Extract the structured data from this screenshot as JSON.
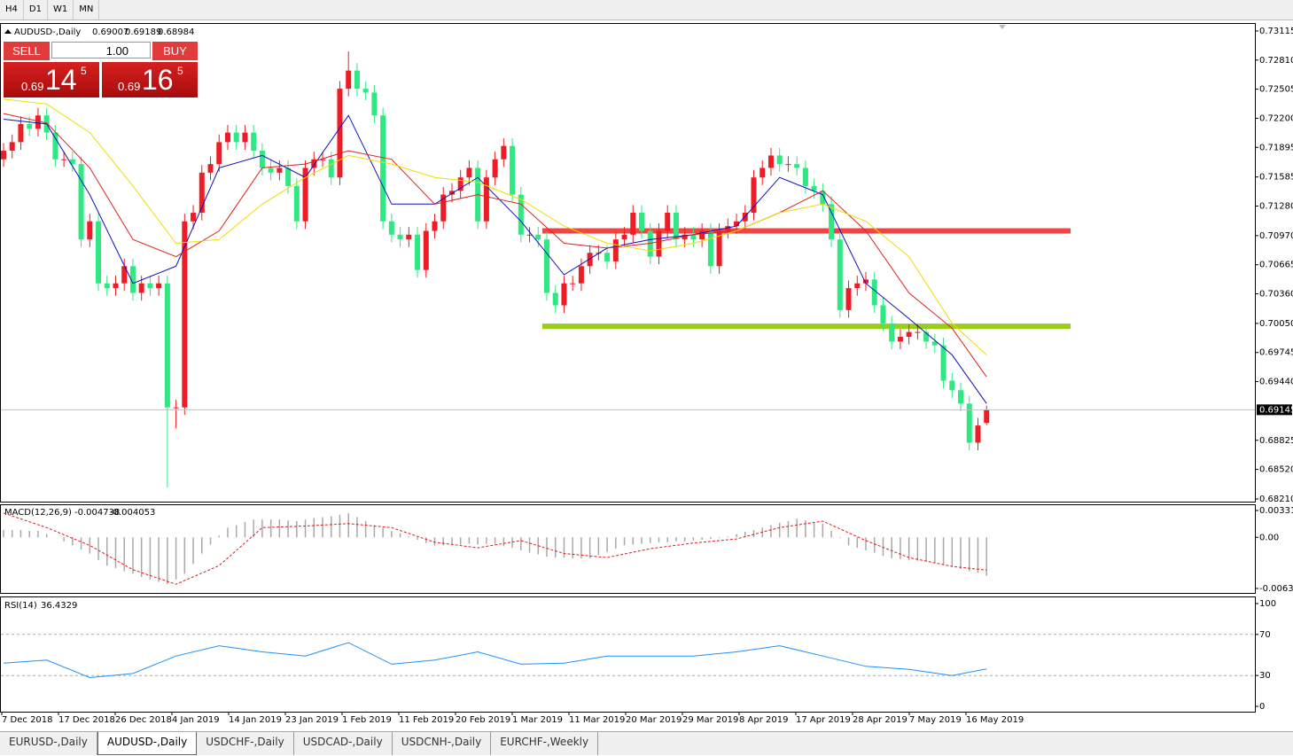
{
  "toolbar": {
    "timeframes": [
      "H4",
      "D1",
      "W1",
      "MN"
    ]
  },
  "trade_panel": {
    "sell": "SELL",
    "buy": "BUY",
    "lots": "1.00",
    "sell_price": {
      "prefix": "0.69",
      "big": "14",
      "small": "5"
    },
    "buy_price": {
      "prefix": "0.69",
      "big": "16",
      "small": "5"
    }
  },
  "tabs": [
    "EURUSD-,Daily",
    "AUDUSD-,Daily",
    "USDCHF-,Daily",
    "USDCAD-,Daily",
    "USDCNH-,Daily",
    "EURCHF-,Weekly"
  ],
  "active_tab": 1,
  "chart_data": [
    {
      "type": "candlestick",
      "title": "AUDUSD-,Daily",
      "up_color": "#ee1c25",
      "down_color": "#2ee882",
      "ohlc": [
        [
          0.7177,
          0.7194,
          0.7169,
          0.7186
        ],
        [
          0.7186,
          0.7203,
          0.7178,
          0.7195
        ],
        [
          0.7195,
          0.7222,
          0.7187,
          0.7214
        ],
        [
          0.7214,
          0.7222,
          0.7201,
          0.7209
        ],
        [
          0.7209,
          0.7231,
          0.7201,
          0.7223
        ],
        [
          0.7223,
          0.7231,
          0.7197,
          0.7205
        ],
        [
          0.7205,
          0.7213,
          0.7169,
          0.7177
        ],
        [
          0.7177,
          0.7185,
          0.7169,
          0.7177
        ],
        [
          0.7177,
          0.7185,
          0.7164,
          0.7172
        ],
        [
          0.7172,
          0.718,
          0.7085,
          0.7093
        ],
        [
          0.7093,
          0.712,
          0.7085,
          0.7112
        ],
        [
          0.7112,
          0.712,
          0.7039,
          0.7047
        ],
        [
          0.7047,
          0.7055,
          0.7034,
          0.7042
        ],
        [
          0.7042,
          0.7055,
          0.7034,
          0.7047
        ],
        [
          0.7047,
          0.7073,
          0.7039,
          0.7065
        ],
        [
          0.7065,
          0.7073,
          0.7029,
          0.7037
        ],
        [
          0.7037,
          0.7055,
          0.7029,
          0.7047
        ],
        [
          0.7047,
          0.7055,
          0.7034,
          0.7042
        ],
        [
          0.7042,
          0.7055,
          0.7034,
          0.7047
        ],
        [
          0.7047,
          0.7055,
          0.6833,
          0.6917
        ],
        [
          0.6917,
          0.6925,
          0.6895,
          0.6917
        ],
        [
          0.6917,
          0.712,
          0.6909,
          0.7112
        ],
        [
          0.7112,
          0.7129,
          0.7104,
          0.7121
        ],
        [
          0.7121,
          0.7171,
          0.7113,
          0.7163
        ],
        [
          0.7163,
          0.718,
          0.7155,
          0.7172
        ],
        [
          0.7172,
          0.7203,
          0.7164,
          0.7195
        ],
        [
          0.7195,
          0.7213,
          0.7187,
          0.7205
        ],
        [
          0.7205,
          0.7213,
          0.7187,
          0.7195
        ],
        [
          0.7195,
          0.7213,
          0.7187,
          0.7205
        ],
        [
          0.7205,
          0.7213,
          0.7178,
          0.7186
        ],
        [
          0.7186,
          0.7194,
          0.716,
          0.7168
        ],
        [
          0.7168,
          0.7176,
          0.7155,
          0.7163
        ],
        [
          0.7163,
          0.7176,
          0.7155,
          0.7168
        ],
        [
          0.7168,
          0.7176,
          0.7141,
          0.7149
        ],
        [
          0.7149,
          0.7157,
          0.7104,
          0.7112
        ],
        [
          0.7112,
          0.7176,
          0.7104,
          0.7168
        ],
        [
          0.7168,
          0.7185,
          0.716,
          0.7177
        ],
        [
          0.7177,
          0.7185,
          0.7169,
          0.7177
        ],
        [
          0.7177,
          0.7185,
          0.715,
          0.7158
        ],
        [
          0.7158,
          0.7259,
          0.715,
          0.7251
        ],
        [
          0.7251,
          0.729,
          0.7243,
          0.727
        ],
        [
          0.727,
          0.7278,
          0.7243,
          0.7251
        ],
        [
          0.7251,
          0.7259,
          0.7239,
          0.7247
        ],
        [
          0.7247,
          0.7255,
          0.7215,
          0.7223
        ],
        [
          0.7223,
          0.7231,
          0.7104,
          0.7112
        ],
        [
          0.7112,
          0.712,
          0.709,
          0.7098
        ],
        [
          0.7098,
          0.7106,
          0.7085,
          0.7093
        ],
        [
          0.7093,
          0.7106,
          0.7085,
          0.7098
        ],
        [
          0.7098,
          0.7106,
          0.7053,
          0.7061
        ],
        [
          0.7061,
          0.711,
          0.7053,
          0.7102
        ],
        [
          0.7102,
          0.712,
          0.7094,
          0.7112
        ],
        [
          0.7112,
          0.7148,
          0.7104,
          0.714
        ],
        [
          0.714,
          0.7152,
          0.7132,
          0.7144
        ],
        [
          0.7144,
          0.7166,
          0.7136,
          0.7158
        ],
        [
          0.7158,
          0.7176,
          0.715,
          0.7168
        ],
        [
          0.7168,
          0.7176,
          0.7104,
          0.7112
        ],
        [
          0.7112,
          0.7166,
          0.7104,
          0.7158
        ],
        [
          0.7158,
          0.7185,
          0.715,
          0.7177
        ],
        [
          0.7177,
          0.7199,
          0.7169,
          0.7191
        ],
        [
          0.7191,
          0.7199,
          0.7132,
          0.714
        ],
        [
          0.714,
          0.7148,
          0.709,
          0.7098
        ],
        [
          0.7098,
          0.7106,
          0.709,
          0.7098
        ],
        [
          0.7098,
          0.7106,
          0.7085,
          0.7093
        ],
        [
          0.7093,
          0.7101,
          0.7029,
          0.7037
        ],
        [
          0.7037,
          0.7045,
          0.7016,
          0.7024
        ],
        [
          0.7024,
          0.7055,
          0.7016,
          0.7047
        ],
        [
          0.7047,
          0.7055,
          0.7039,
          0.7047
        ],
        [
          0.7047,
          0.7073,
          0.7039,
          0.7065
        ],
        [
          0.7065,
          0.7087,
          0.7057,
          0.7079
        ],
        [
          0.7079,
          0.7087,
          0.7071,
          0.7079
        ],
        [
          0.7079,
          0.7087,
          0.7062,
          0.707
        ],
        [
          0.707,
          0.7101,
          0.7062,
          0.7093
        ],
        [
          0.7093,
          0.7106,
          0.7085,
          0.7098
        ],
        [
          0.7098,
          0.7129,
          0.709,
          0.7121
        ],
        [
          0.7121,
          0.7129,
          0.7094,
          0.7102
        ],
        [
          0.7102,
          0.711,
          0.7067,
          0.7075
        ],
        [
          0.7075,
          0.711,
          0.7067,
          0.7102
        ],
        [
          0.7102,
          0.7129,
          0.7094,
          0.7121
        ],
        [
          0.7121,
          0.7129,
          0.7085,
          0.7093
        ],
        [
          0.7093,
          0.7106,
          0.7085,
          0.7098
        ],
        [
          0.7098,
          0.7106,
          0.7085,
          0.7093
        ],
        [
          0.7093,
          0.711,
          0.7085,
          0.7102
        ],
        [
          0.7102,
          0.711,
          0.7057,
          0.7065
        ],
        [
          0.7065,
          0.711,
          0.7057,
          0.7102
        ],
        [
          0.7102,
          0.7115,
          0.7094,
          0.7107
        ],
        [
          0.7107,
          0.712,
          0.7099,
          0.7112
        ],
        [
          0.7112,
          0.7129,
          0.7104,
          0.7121
        ],
        [
          0.7121,
          0.7166,
          0.7113,
          0.7158
        ],
        [
          0.7158,
          0.7176,
          0.715,
          0.7168
        ],
        [
          0.7168,
          0.7189,
          0.716,
          0.7181
        ],
        [
          0.7181,
          0.7189,
          0.7164,
          0.7172
        ],
        [
          0.7172,
          0.718,
          0.7164,
          0.7172
        ],
        [
          0.7172,
          0.718,
          0.716,
          0.7168
        ],
        [
          0.7168,
          0.7176,
          0.7141,
          0.7149
        ],
        [
          0.7149,
          0.7157,
          0.7136,
          0.7144
        ],
        [
          0.7144,
          0.7152,
          0.7122,
          0.713
        ],
        [
          0.713,
          0.7138,
          0.7085,
          0.7093
        ],
        [
          0.7093,
          0.7101,
          0.7011,
          0.7019
        ],
        [
          0.7019,
          0.705,
          0.7011,
          0.7042
        ],
        [
          0.7042,
          0.7055,
          0.7034,
          0.7047
        ],
        [
          0.7047,
          0.7059,
          0.7039,
          0.7051
        ],
        [
          0.7051,
          0.7059,
          0.7016,
          0.7024
        ],
        [
          0.7024,
          0.7032,
          0.6997,
          0.7005
        ],
        [
          0.7005,
          0.7013,
          0.6978,
          0.6986
        ],
        [
          0.6986,
          0.6999,
          0.6978,
          0.6991
        ],
        [
          0.6991,
          0.7004,
          0.6983,
          0.6996
        ],
        [
          0.6996,
          0.7004,
          0.6988,
          0.6996
        ],
        [
          0.6996,
          0.7004,
          0.6978,
          0.6986
        ],
        [
          0.6986,
          0.6994,
          0.6974,
          0.6982
        ],
        [
          0.6982,
          0.699,
          0.6937,
          0.6945
        ],
        [
          0.6945,
          0.6953,
          0.6927,
          0.6935
        ],
        [
          0.6935,
          0.6943,
          0.6913,
          0.6921
        ],
        [
          0.6921,
          0.6929,
          0.6872,
          0.688
        ],
        [
          0.688,
          0.6906,
          0.6872,
          0.6898
        ],
        [
          0.69007,
          0.69189,
          0.68984,
          0.69145
        ]
      ],
      "series": [
        {
          "color": "#1010c0",
          "x": [
            0,
            5,
            10,
            15,
            20,
            25,
            30,
            35,
            40,
            45,
            50,
            55,
            60,
            65,
            70,
            75,
            80,
            85,
            90,
            95,
            100,
            105,
            110,
            114
          ],
          "values": [
            0.7219,
            0.7214,
            0.714,
            0.7047,
            0.7065,
            0.7168,
            0.7181,
            0.7158,
            0.7223,
            0.713,
            0.713,
            0.7158,
            0.7112,
            0.7056,
            0.7084,
            0.7093,
            0.7098,
            0.7107,
            0.7158,
            0.714,
            0.7047,
            0.701,
            0.6972,
            0.6921
          ]
        },
        {
          "color": "#e02020",
          "x": [
            0,
            5,
            10,
            15,
            20,
            25,
            30,
            35,
            40,
            45,
            50,
            55,
            60,
            65,
            70,
            75,
            80,
            85,
            90,
            95,
            100,
            105,
            110,
            114
          ],
          "values": [
            0.7225,
            0.7215,
            0.7168,
            0.7093,
            0.7075,
            0.7102,
            0.7168,
            0.7172,
            0.7186,
            0.7177,
            0.713,
            0.714,
            0.713,
            0.7089,
            0.7084,
            0.7089,
            0.7098,
            0.7102,
            0.7121,
            0.7144,
            0.7102,
            0.7037,
            0.7,
            0.6949
          ]
        },
        {
          "color": "#f0dc00",
          "x": [
            0,
            5,
            10,
            15,
            20,
            25,
            30,
            35,
            40,
            45,
            50,
            55,
            60,
            65,
            70,
            75,
            80,
            85,
            90,
            95,
            100,
            105,
            110,
            114
          ],
          "values": [
            0.724,
            0.7235,
            0.7205,
            0.7149,
            0.7089,
            0.7093,
            0.713,
            0.7158,
            0.7181,
            0.7172,
            0.7158,
            0.7153,
            0.7135,
            0.7107,
            0.7089,
            0.7081,
            0.7089,
            0.7102,
            0.7121,
            0.713,
            0.7112,
            0.7075,
            0.7005,
            0.6972
          ]
        }
      ],
      "levels": [
        {
          "value": 0.7102,
          "color": "#f04545"
        },
        {
          "value": 0.7002,
          "color": "#9acd1a"
        }
      ],
      "ylim": [
        0.68182,
        0.73189
      ],
      "yticks": [
        0.73115,
        {
          "value": 0.7281,
          "label": "0.72810"
        },
        0.72505,
        {
          "value": 0.722,
          "label": "0.72200"
        },
        0.71895,
        0.71585,
        {
          "value": 0.7128,
          "label": "0.71280"
        },
        {
          "value": 0.7097,
          "label": "0.70970"
        },
        0.70665,
        {
          "value": 0.7036,
          "label": "0.70360"
        },
        {
          "value": 0.7005,
          "label": "0.70050"
        },
        0.69745,
        {
          "value": 0.6944,
          "label": "0.69440"
        },
        0.68825,
        {
          "value": 0.6852,
          "label": "0.68520"
        },
        {
          "value": 0.6821,
          "label": "0.68210"
        }
      ],
      "x_labels": [
        "7 Dec 2018",
        "17 Dec 2018",
        "26 Dec 2018",
        "4 Jan 2019",
        "14 Jan 2019",
        "23 Jan 2019",
        "1 Feb 2019",
        "11 Feb 2019",
        "20 Feb 2019",
        "1 Mar 2019",
        "11 Mar 2019",
        "20 Mar 2019",
        "29 Mar 2019",
        "8 Apr 2019",
        "17 Apr 2019",
        "28 Apr 2019",
        "7 May 2019",
        "16 May 2019"
      ]
    },
    {
      "type": "macd",
      "title": "MACD(12,26,9)",
      "histogram_color": "#a9a9a9",
      "histogram": [
        0.0009,
        0.0009,
        0.0009,
        0.0008,
        0.0008,
        0.0004,
        0,
        -0.0005,
        -0.001,
        -0.0015,
        -0.002,
        -0.0028,
        -0.0035,
        -0.0038,
        -0.0042,
        -0.0045,
        -0.0049,
        -0.0052,
        -0.0055,
        -0.0058,
        -0.0052,
        -0.0045,
        -0.0033,
        -0.002,
        -0.0009,
        0.0002,
        0.0012,
        0.0015,
        0.0019,
        0.0022,
        0.0022,
        0.0022,
        0.0022,
        0.0021,
        0.002,
        0.0022,
        0.0024,
        0.0025,
        0.0026,
        0.0028,
        0.003,
        0.0025,
        0.002,
        0.0015,
        0.0012,
        0.0008,
        0.0005,
        0.0001,
        -0.0003,
        -0.0007,
        -0.001,
        -0.001,
        -0.0009,
        -0.0009,
        -0.0008,
        -0.0009,
        -0.0008,
        -0.0008,
        -0.0011,
        -0.0013,
        -0.0016,
        -0.0019,
        -0.0021,
        -0.0024,
        -0.0025,
        -0.0025,
        -0.0026,
        -0.0026,
        -0.0026,
        -0.0022,
        -0.0018,
        -0.0014,
        -0.001,
        -0.0009,
        -0.0008,
        -0.0007,
        -0.0006,
        -0.0006,
        -0.0005,
        -0.0005,
        -0.0004,
        -0.0003,
        -0.0002,
        -0.0001,
        0.0001,
        0.0004,
        0.0007,
        0.0009,
        0.0012,
        0.0015,
        0.0018,
        0.002,
        0.0023,
        0.0021,
        0.0019,
        0.0017,
        0.0008,
        -0.0001,
        -0.001,
        -0.0013,
        -0.0016,
        -0.0019,
        -0.0023,
        -0.0026,
        -0.0027,
        -0.0028,
        -0.0029,
        -0.003,
        -0.0031,
        -0.0034,
        -0.0036,
        -0.0039,
        -0.0042,
        -0.0044,
        -0.004738
      ],
      "signal": {
        "color": "#e31a1c",
        "x": [
          0,
          5,
          10,
          15,
          20,
          25,
          30,
          35,
          40,
          45,
          50,
          55,
          60,
          65,
          70,
          75,
          80,
          85,
          90,
          95,
          100,
          105,
          110,
          114
        ],
        "values": [
          0.003,
          0.0012,
          -0.001,
          -0.004,
          -0.0058,
          -0.0035,
          0.0012,
          0.0014,
          0.0017,
          0.0012,
          -0.0006,
          -0.0013,
          -0.0004,
          -0.002,
          -0.0025,
          -0.0014,
          -0.0007,
          -0.0002,
          0.0012,
          0.002,
          -0.0004,
          -0.0025,
          -0.0036,
          -0.004053
        ]
      },
      "ylim": [
        -0.006325,
        0.003319
      ],
      "yticks": [
        0.003319,
        {
          "value": 0,
          "label": "0.00"
        },
        -0.006325
      ]
    },
    {
      "type": "line",
      "title": "RSI(14)",
      "color": "#1e90ff",
      "x": [
        0,
        5,
        10,
        15,
        20,
        25,
        30,
        35,
        40,
        45,
        50,
        55,
        60,
        65,
        70,
        75,
        80,
        85,
        90,
        95,
        100,
        105,
        110,
        114
      ],
      "values": [
        42,
        45,
        28,
        32,
        49,
        59,
        53,
        49,
        62,
        41,
        45,
        53,
        41,
        42,
        49,
        49,
        49,
        53,
        59,
        49,
        39,
        36,
        30,
        36.4329
      ],
      "ylim": [
        0,
        100
      ],
      "yticks": [
        100,
        70,
        30,
        0
      ],
      "dashed_grid": true
    }
  ]
}
